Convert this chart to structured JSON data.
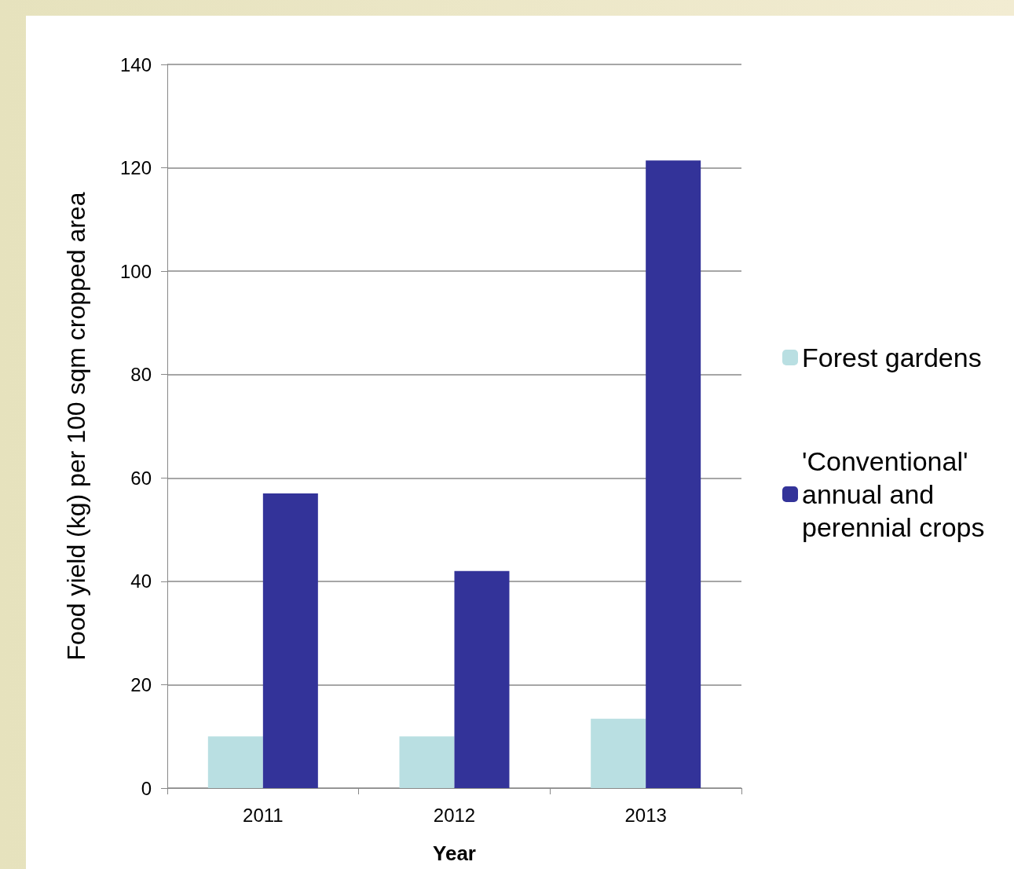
{
  "chart_data": {
    "type": "bar",
    "xlabel": "Year",
    "ylabel": "Food yield (kg) per 100 sqm cropped area",
    "categories": [
      "2011",
      "2012",
      "2013"
    ],
    "series": [
      {
        "name": "Forest gardens",
        "color": "#b9dfe2",
        "values": [
          10,
          10,
          13.4
        ]
      },
      {
        "name": "'Conventional' annual and perennial crops",
        "color": "#333399",
        "values": [
          57,
          42,
          121.4
        ]
      }
    ],
    "ylim": [
      0,
      140
    ],
    "yticks": [
      0,
      20,
      40,
      60,
      80,
      100,
      120,
      140
    ],
    "grid": "y",
    "legend": "right"
  }
}
